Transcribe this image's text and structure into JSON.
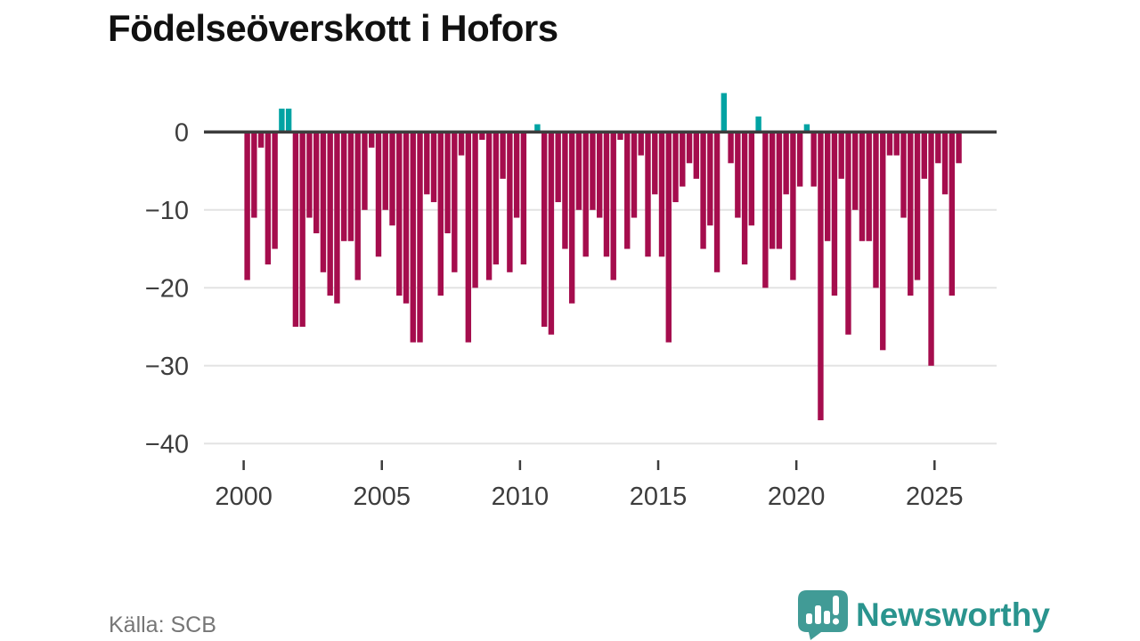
{
  "title": "Födelseöverskott i Hofors",
  "source": {
    "label": "Källa: SCB"
  },
  "logo": {
    "brand": "Newsworthy"
  },
  "colors": {
    "negative": "#a50d4d",
    "positive": "#00a3a3",
    "grid": "#e3e3e3",
    "zero_line": "#3c3c3c",
    "axis_text": "#3d3d3d",
    "title_text": "#111111",
    "source_text": "#767676",
    "logo_bubble": "#419b96",
    "logo_wordmark": "#2a948e"
  },
  "chart_data": {
    "type": "bar",
    "title": "Födelseöverskott i Hofors",
    "frequency": "quarterly",
    "start": "2000-Q1",
    "end": "2025-Q4",
    "grid": "horizontal",
    "ylim": [
      -40,
      6
    ],
    "x_tick_labels": [
      "2000",
      "2005",
      "2010",
      "2015",
      "2020",
      "2025"
    ],
    "x_tick_years": [
      2000,
      2005,
      2010,
      2015,
      2020,
      2025
    ],
    "y_tick_labels": [
      "0",
      "−10",
      "−20",
      "−30",
      "−40"
    ],
    "y_tick_values": [
      0,
      -10,
      -20,
      -30,
      -40
    ],
    "values": [
      -19,
      -11,
      -2,
      -17,
      -15,
      3,
      3,
      -25,
      -25,
      -11,
      -13,
      -18,
      -21,
      -22,
      -14,
      -14,
      -19,
      -10,
      -2,
      -16,
      -10,
      -12,
      -21,
      -22,
      -27,
      -27,
      -8,
      -9,
      -21,
      -13,
      -18,
      -3,
      -27,
      -20,
      -1,
      -19,
      -17,
      -6,
      -18,
      -11,
      -17,
      0,
      1,
      -25,
      -26,
      -9,
      -15,
      -22,
      -10,
      -16,
      -10,
      -11,
      -16,
      -19,
      -1,
      -15,
      -11,
      -3,
      -16,
      -8,
      -16,
      -27,
      -9,
      -7,
      -4,
      -6,
      -15,
      -12,
      -18,
      5,
      -4,
      -11,
      -17,
      -12,
      2,
      -20,
      -15,
      -15,
      -8,
      -19,
      -7,
      1,
      -7,
      -37,
      -14,
      -21,
      -6,
      -26,
      -10,
      -14,
      -14,
      -20,
      -28,
      -3,
      -3,
      -11,
      -21,
      -19,
      -6,
      -30,
      -4,
      -8,
      -21,
      -4
    ]
  }
}
